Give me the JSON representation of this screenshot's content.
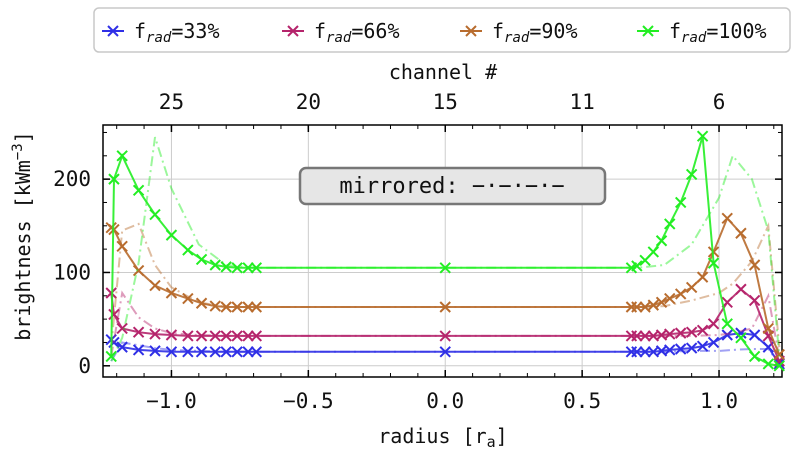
{
  "chart_data": {
    "type": "line",
    "xlabel": "radius [r",
    "xlabel_sub": "a",
    "xlabel_end": "]",
    "ylabel": "brightness [kWm",
    "ylabel_sup": "−3",
    "ylabel_end": "]",
    "top_axis_label": "channel #",
    "xlim": [
      -1.25,
      1.23
    ],
    "ylim": [
      -12,
      258
    ],
    "x_ticks": [
      "−1.0",
      "−0.5",
      "0.0",
      "0.5",
      "1.0"
    ],
    "x_tick_values": [
      -1.0,
      -0.5,
      0.0,
      0.5,
      1.0
    ],
    "y_ticks": [
      "0",
      "100",
      "200"
    ],
    "y_tick_values": [
      0,
      100,
      200
    ],
    "top_ticks": [
      "25",
      "20",
      "15",
      "11",
      "6"
    ],
    "top_tick_values": [
      -1.0,
      -0.5,
      0.0,
      0.5,
      1.0
    ],
    "grid": true,
    "legend_position": "top",
    "annotation": "mirrored: −·−·−·−",
    "series": [
      {
        "name_main": "f",
        "name_sub": "rad",
        "name_value": "=33%",
        "color": "#2f2fe6",
        "x": [
          -1.22,
          -1.21,
          -1.18,
          -1.12,
          -1.06,
          -1.0,
          -0.94,
          -0.89,
          -0.84,
          -0.8,
          -0.76,
          -0.72,
          -0.69,
          0.0,
          0.68,
          0.7,
          0.73,
          0.76,
          0.79,
          0.82,
          0.86,
          0.9,
          0.94,
          0.98,
          1.03,
          1.08,
          1.13,
          1.18,
          1.22
        ],
        "y": [
          28,
          25,
          20,
          17,
          16,
          15,
          15,
          15,
          15,
          15,
          15,
          15,
          15,
          15,
          15,
          15,
          15,
          15,
          16,
          17,
          18,
          19,
          21,
          25,
          33,
          35,
          33,
          20,
          2
        ],
        "mirror_x": [
          -1.22,
          -1.18,
          -1.12,
          -1.06,
          -1.0,
          -0.9,
          -0.8,
          -0.7,
          0.7,
          0.8,
          0.9,
          1.0,
          1.05,
          1.12,
          1.18,
          1.22
        ],
        "mirror_y": [
          5,
          25,
          22,
          19,
          17,
          16,
          15,
          15,
          15,
          15,
          16,
          16,
          17,
          18,
          18,
          2
        ]
      },
      {
        "name_main": "f",
        "name_sub": "rad",
        "name_value": "=66%",
        "color": "#b5246b",
        "x": [
          -1.22,
          -1.21,
          -1.18,
          -1.12,
          -1.06,
          -1.0,
          -0.94,
          -0.89,
          -0.84,
          -0.8,
          -0.76,
          -0.72,
          -0.69,
          0.0,
          0.68,
          0.7,
          0.73,
          0.76,
          0.79,
          0.82,
          0.86,
          0.9,
          0.94,
          0.98,
          1.03,
          1.08,
          1.13,
          1.18,
          1.22
        ],
        "y": [
          78,
          55,
          40,
          36,
          34,
          33,
          32,
          32,
          32,
          32,
          32,
          32,
          32,
          32,
          32,
          32,
          32,
          32,
          33,
          34,
          35,
          36,
          38,
          45,
          68,
          82,
          70,
          32,
          5
        ],
        "mirror_x": [
          -1.22,
          -1.18,
          -1.12,
          -1.06,
          -1.0,
          -0.9,
          -0.8,
          -0.7,
          0.7,
          0.8,
          0.9,
          1.0,
          1.05,
          1.12,
          1.18,
          1.22
        ],
        "mirror_y": [
          10,
          78,
          52,
          40,
          35,
          33,
          32,
          32,
          32,
          32,
          32,
          33,
          35,
          40,
          75,
          8
        ]
      },
      {
        "name_main": "f",
        "name_sub": "rad",
        "name_value": "=90%",
        "color": "#b86c2e",
        "x": [
          -1.22,
          -1.21,
          -1.18,
          -1.12,
          -1.06,
          -1.0,
          -0.94,
          -0.89,
          -0.84,
          -0.8,
          -0.76,
          -0.72,
          -0.69,
          0.0,
          0.68,
          0.7,
          0.73,
          0.76,
          0.79,
          0.82,
          0.86,
          0.9,
          0.94,
          0.98,
          1.03,
          1.08,
          1.13,
          1.18,
          1.22
        ],
        "y": [
          148,
          146,
          128,
          102,
          86,
          78,
          72,
          67,
          64,
          63,
          63,
          63,
          63,
          63,
          63,
          63,
          63,
          65,
          68,
          72,
          77,
          84,
          95,
          122,
          158,
          142,
          108,
          40,
          12
        ],
        "mirror_x": [
          -1.22,
          -1.18,
          -1.12,
          -1.06,
          -1.0,
          -0.9,
          -0.8,
          -0.7,
          0.7,
          0.8,
          0.9,
          1.0,
          1.05,
          1.12,
          1.18,
          1.22
        ],
        "mirror_y": [
          20,
          145,
          152,
          108,
          84,
          68,
          63,
          63,
          63,
          64,
          70,
          78,
          88,
          112,
          150,
          20
        ]
      },
      {
        "name_main": "f",
        "name_sub": "rad",
        "name_value": "=100%",
        "color": "#22ee22",
        "x": [
          -1.22,
          -1.21,
          -1.18,
          -1.12,
          -1.06,
          -1.0,
          -0.94,
          -0.89,
          -0.84,
          -0.8,
          -0.76,
          -0.72,
          -0.69,
          0.0,
          0.68,
          0.7,
          0.73,
          0.76,
          0.79,
          0.82,
          0.86,
          0.9,
          0.94,
          0.98,
          1.03,
          1.08,
          1.13,
          1.18,
          1.22
        ],
        "y": [
          10,
          200,
          225,
          188,
          162,
          140,
          124,
          114,
          108,
          106,
          105,
          105,
          105,
          105,
          105,
          107,
          113,
          122,
          134,
          152,
          175,
          205,
          246,
          110,
          45,
          30,
          10,
          2,
          0
        ],
        "mirror_x": [
          -1.22,
          -1.18,
          -1.12,
          -1.06,
          -1.0,
          -0.9,
          -0.8,
          -0.7,
          0.7,
          0.8,
          0.9,
          1.0,
          1.05,
          1.12,
          1.18,
          1.22
        ],
        "mirror_y": [
          5,
          30,
          110,
          245,
          190,
          130,
          108,
          105,
          105,
          108,
          130,
          180,
          225,
          200,
          145,
          10
        ]
      }
    ]
  }
}
